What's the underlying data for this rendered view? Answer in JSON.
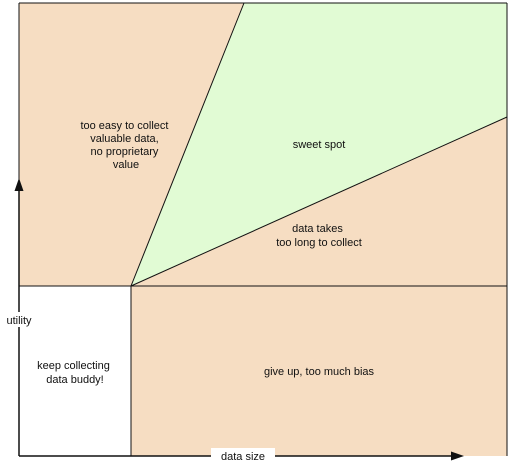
{
  "diagram": {
    "colors": {
      "tan": "#F6DDC2",
      "green": "#E1FBD4",
      "white": "#FFFFFF",
      "line": "#111111"
    },
    "regions": {
      "top_left": [
        "too easy to collect",
        "valuable data,",
        "no proprietary",
        "value"
      ],
      "sweet_spot": [
        "sweet spot"
      ],
      "middle_right": [
        "data takes",
        "too long to collect"
      ],
      "bottom_left": [
        "keep collecting",
        "data buddy!"
      ],
      "bottom_right": [
        "give up, too much bias"
      ]
    },
    "axes": {
      "y_label": "utility",
      "x_label": "data size"
    }
  }
}
